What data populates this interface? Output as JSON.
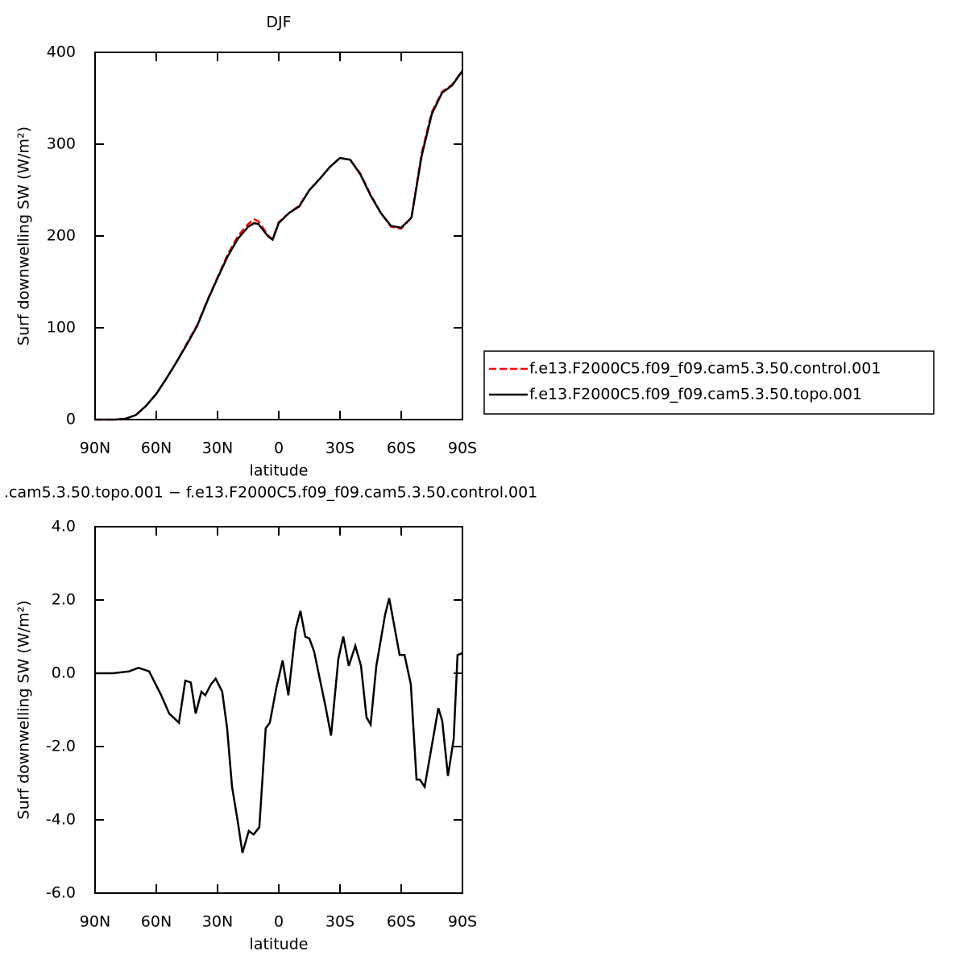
{
  "chart_data": [
    {
      "type": "line",
      "title": "DJF",
      "xlabel": "latitude",
      "ylabel": "Surf downwelling SW (W/m²)",
      "x": [
        90,
        85,
        80,
        75,
        70,
        65,
        60,
        55,
        50,
        45,
        40,
        35,
        30,
        25,
        20,
        15,
        12,
        10,
        5,
        3,
        0,
        -5,
        -10,
        -15,
        -20,
        -25,
        -30,
        -35,
        -40,
        -45,
        -50,
        -55,
        -60,
        -65,
        -70,
        -75,
        -80,
        -85,
        -90
      ],
      "series": [
        {
          "name": "f.e13.F2000C5.f09_f09.cam5.3.50.control.001",
          "color": "#ff0000",
          "style": "dashed",
          "values": [
            0,
            0,
            0,
            1,
            5,
            15,
            28,
            45,
            63,
            83,
            103,
            130,
            155,
            180,
            200,
            213,
            218,
            216,
            200,
            197,
            215,
            225,
            233,
            250,
            262,
            275,
            285,
            283,
            268,
            245,
            225,
            210,
            208,
            220,
            290,
            335,
            357,
            365,
            380
          ]
        },
        {
          "name": "f.e13.F2000C5.f09_f09.cam5.3.50.topo.001",
          "color": "#000000",
          "style": "solid",
          "values": [
            0,
            0,
            0,
            1,
            5,
            15,
            28,
            45,
            63,
            82,
            102,
            129,
            154,
            178,
            197,
            210,
            214,
            213,
            199,
            196,
            214,
            225,
            232,
            250,
            262,
            275,
            285,
            283,
            267,
            244,
            225,
            211,
            209,
            220,
            287,
            333,
            356,
            364,
            380
          ]
        }
      ],
      "xlim": [
        90,
        -90
      ],
      "xticks": [
        {
          "value": 90,
          "label": "90N"
        },
        {
          "value": 60,
          "label": "60N"
        },
        {
          "value": 30,
          "label": "30N"
        },
        0,
        {
          "value": -30,
          "label": "30S"
        },
        {
          "value": -60,
          "label": "60S"
        },
        {
          "value": -90,
          "label": "90S"
        }
      ],
      "ylim": [
        0,
        400
      ],
      "yticks": [
        0,
        100,
        200,
        300,
        400
      ],
      "legend": "right"
    },
    {
      "type": "line",
      "title": ".cam5.3.50.topo.001 − f.e13.F2000C5.f09_f09.cam5.3.50.control.001",
      "xlabel": "latitude",
      "ylabel": "Surf downwelling SW (W/m²)",
      "x": [
        90,
        81.3,
        73.4,
        68.7,
        63.5,
        57.6,
        53.7,
        48.9,
        45.8,
        43.1,
        40.7,
        37.9,
        36.0,
        33.2,
        30.9,
        27.7,
        25.3,
        22.9,
        20.2,
        17.8,
        14.7,
        12.3,
        9.5,
        6.4,
        4.4,
        1.2,
        -1.9,
        -4.7,
        -8.3,
        -10.6,
        -13.0,
        -15.0,
        -17.3,
        -22.9,
        -25.6,
        -29.2,
        -31.6,
        -34.3,
        -37.5,
        -40.3,
        -43.0,
        -45.0,
        -47.8,
        -52.1,
        -54.1,
        -59.2,
        -61.6,
        -64.7,
        -67.5,
        -69.1,
        -71.5,
        -74.6,
        -78.2,
        -80.1,
        -82.9,
        -85.7,
        -87.6,
        -90
      ],
      "series": [
        {
          "color": "#000000",
          "style": "solid",
          "values": [
            0,
            0,
            0.05,
            0.15,
            0.05,
            -0.6,
            -1.1,
            -1.35,
            -0.2,
            -0.25,
            -1.1,
            -0.5,
            -0.6,
            -0.3,
            -0.15,
            -0.5,
            -1.5,
            -3.1,
            -4.0,
            -4.9,
            -4.3,
            -4.4,
            -4.2,
            -1.5,
            -1.35,
            -0.4,
            0.35,
            -0.6,
            1.2,
            1.7,
            1.0,
            0.95,
            0.6,
            -0.9,
            -1.7,
            0.4,
            1.0,
            0.2,
            0.75,
            0.2,
            -1.2,
            -1.4,
            0.2,
            1.6,
            2.05,
            0.5,
            0.5,
            -0.3,
            -2.9,
            -2.9,
            -3.1,
            -2.1,
            -0.95,
            -1.3,
            -2.8,
            -1.8,
            0.5,
            0.55
          ]
        }
      ],
      "xlim": [
        90,
        -90
      ],
      "xticks": [
        {
          "value": 90,
          "label": "90N"
        },
        {
          "value": 60,
          "label": "60N"
        },
        {
          "value": 30,
          "label": "30N"
        },
        0,
        {
          "value": -30,
          "label": "30S"
        },
        {
          "value": -60,
          "label": "60S"
        },
        {
          "value": -90,
          "label": "90S"
        }
      ],
      "ylim": [
        -6,
        4
      ],
      "yticks": [
        {
          "value": -6,
          "label": "-6.0"
        },
        {
          "value": -4,
          "label": "-4.0"
        },
        {
          "value": -2,
          "label": "-2.0"
        },
        {
          "value": 0,
          "label": "0.0"
        },
        {
          "value": 2,
          "label": "2.0"
        },
        {
          "value": 4,
          "label": "4.0"
        }
      ]
    }
  ]
}
